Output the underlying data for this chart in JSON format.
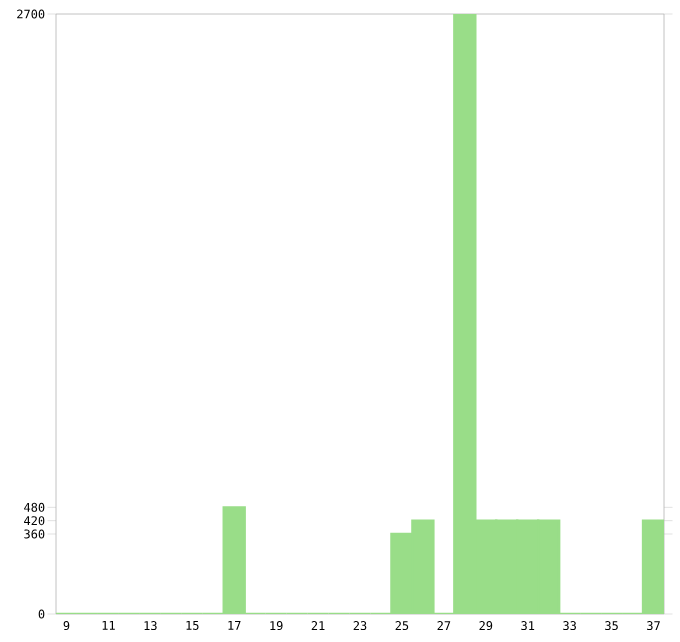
{
  "chart_data": {
    "type": "bar",
    "categories": [
      "9",
      null,
      "11",
      null,
      "13",
      null,
      "15",
      null,
      "17",
      null,
      "19",
      null,
      "21",
      null,
      "23",
      null,
      "25",
      null,
      "27",
      null,
      "29",
      null,
      "31",
      null,
      "33",
      null,
      "35",
      null,
      "37"
    ],
    "values": [
      0,
      0,
      0,
      0,
      0,
      0,
      0,
      0,
      480,
      0,
      0,
      0,
      0,
      0,
      0,
      0,
      360,
      420,
      0,
      2700,
      420,
      420,
      420,
      420,
      0,
      0,
      0,
      0,
      420
    ],
    "color": "#99dd88",
    "ylim": [
      0,
      2700
    ],
    "yticks": [
      0,
      360,
      420,
      480,
      2700
    ]
  }
}
